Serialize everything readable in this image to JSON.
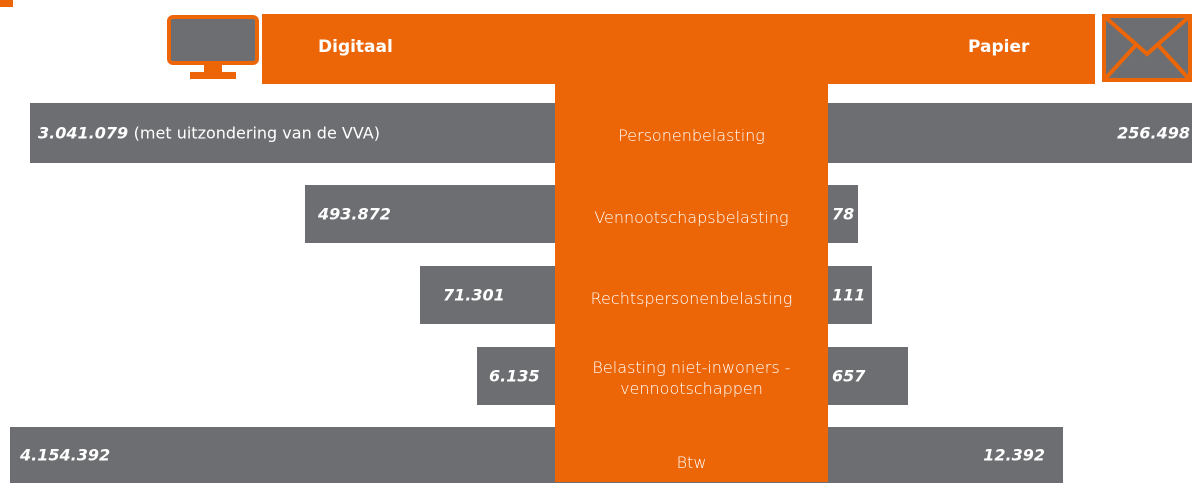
{
  "header": {
    "digital": "Digitaal",
    "paper": "Papier"
  },
  "rows": [
    {
      "tax": "Personenbelasting",
      "digital": "3.041.079",
      "digital_note": "(met uitzondering van de VVA)",
      "paper": "256.498"
    },
    {
      "tax": "Vennootschapsbelasting",
      "digital": "493.872",
      "paper": "78"
    },
    {
      "tax": "Rechtspersonenbelasting",
      "digital": "71.301",
      "paper": "111"
    },
    {
      "tax": "Belasting niet-inwoners - vennootschappen",
      "digital": "6.135",
      "paper": "657"
    },
    {
      "tax": "Btw",
      "digital": "4.154.392",
      "paper": "12.392"
    }
  ]
}
